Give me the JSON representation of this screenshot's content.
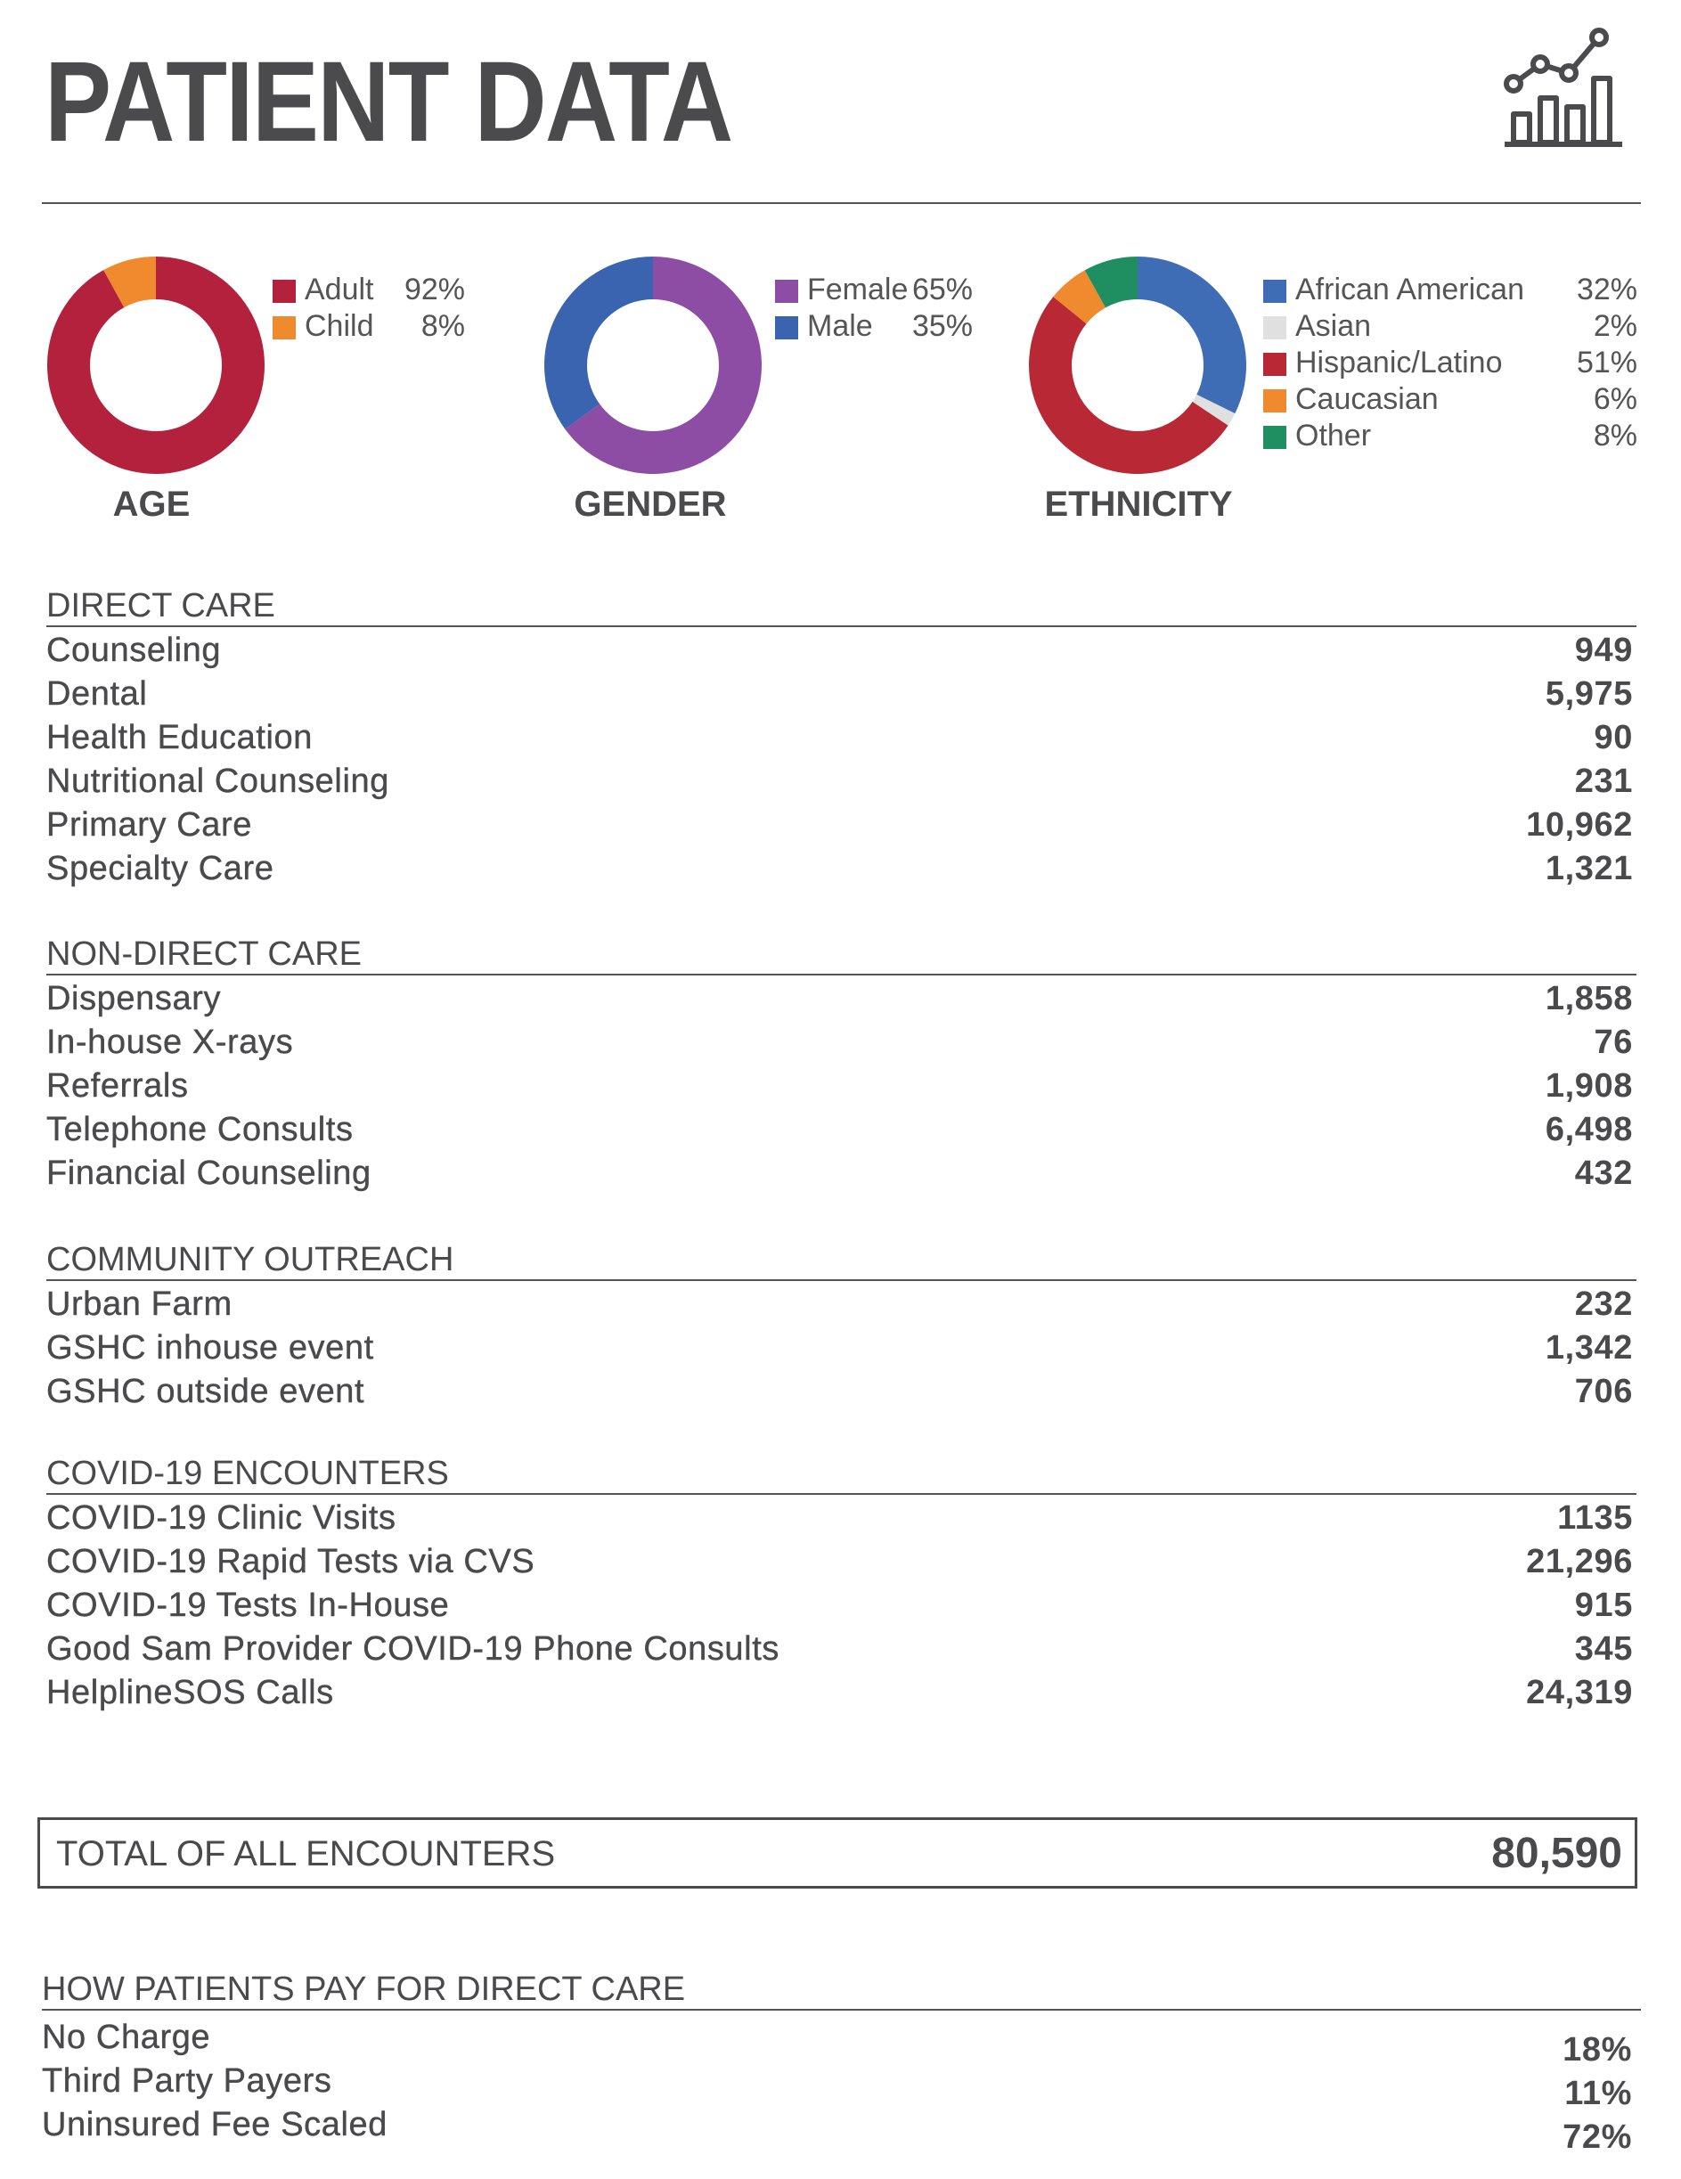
{
  "title": "PATIENT DATA",
  "header_icon": "chart-growth-icon",
  "chart_data": [
    {
      "type": "pie",
      "title": "AGE",
      "categories": [
        "Adult",
        "Child"
      ],
      "values": [
        92,
        8
      ],
      "labels": [
        "92%",
        "8%"
      ],
      "colors": [
        "#b3213c",
        "#f08a2e"
      ]
    },
    {
      "type": "pie",
      "title": "GENDER",
      "categories": [
        "Female",
        "Male"
      ],
      "values": [
        65,
        35
      ],
      "labels": [
        "65%",
        "35%"
      ],
      "colors": [
        "#8d4da5",
        "#3a64b0"
      ]
    },
    {
      "type": "pie",
      "title": "ETHNICITY",
      "categories": [
        "African American",
        "Asian",
        "Hispanic/Latino",
        "Caucasian",
        "Other"
      ],
      "values": [
        32,
        2,
        51,
        6,
        8
      ],
      "labels": [
        "32%",
        "2%",
        "51%",
        "6%",
        "8%"
      ],
      "colors": [
        "#3f6db5",
        "#e0e0e0",
        "#b82835",
        "#f08a2e",
        "#1f8f62"
      ]
    }
  ],
  "sections": [
    {
      "heading": "DIRECT CARE",
      "rows": [
        {
          "label": "Counseling",
          "value": "949"
        },
        {
          "label": "Dental",
          "value": "5,975"
        },
        {
          "label": "Health Education",
          "value": "90"
        },
        {
          "label": "Nutritional Counseling",
          "value": "231"
        },
        {
          "label": "Primary Care",
          "value": "10,962"
        },
        {
          "label": "Specialty Care",
          "value": "1,321"
        }
      ]
    },
    {
      "heading": "NON-DIRECT CARE",
      "rows": [
        {
          "label": "Dispensary",
          "value": "1,858"
        },
        {
          "label": "In-house X-rays",
          "value": "76"
        },
        {
          "label": "Referrals",
          "value": "1,908"
        },
        {
          "label": "Telephone Consults",
          "value": "6,498"
        },
        {
          "label": "Financial Counseling",
          "value": "432"
        }
      ]
    },
    {
      "heading": "COMMUNITY OUTREACH",
      "rows": [
        {
          "label": "Urban Farm",
          "value": "232"
        },
        {
          "label": "GSHC inhouse event",
          "value": "1,342"
        },
        {
          "label": "GSHC outside event",
          "value": "706"
        }
      ]
    },
    {
      "heading": "COVID-19 ENCOUNTERS",
      "rows": [
        {
          "label": "COVID-19 Clinic Visits",
          "value": "1135"
        },
        {
          "label": "COVID-19 Rapid Tests via CVS",
          "value": "21,296"
        },
        {
          "label": "COVID-19 Tests In-House",
          "value": "915"
        },
        {
          "label": "Good Sam Provider COVID-19 Phone Consults",
          "value": "345"
        },
        {
          "label": "HelplineSOS Calls",
          "value": "24,319"
        }
      ]
    }
  ],
  "total": {
    "label": "TOTAL OF ALL ENCOUNTERS",
    "value": "80,590"
  },
  "payment": {
    "heading": "HOW PATIENTS PAY FOR DIRECT CARE",
    "rows": [
      {
        "label": "No Charge",
        "value": "18%"
      },
      {
        "label": "Third Party Payers",
        "value": "11%"
      },
      {
        "label": "Uninsured Fee Scaled",
        "value": "72%"
      }
    ]
  }
}
